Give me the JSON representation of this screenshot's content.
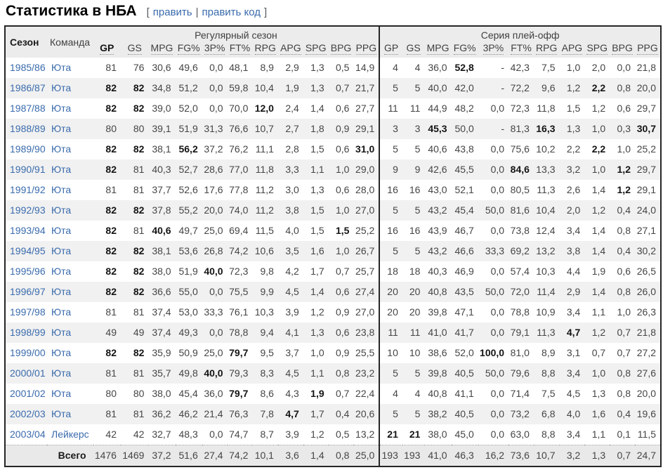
{
  "page": {
    "title": "Статистика в НБА",
    "edit": {
      "open_bracket": "[",
      "edit_label": "править",
      "divider": "|",
      "edit_code_label": "править код",
      "close_bracket": "]"
    }
  },
  "colors": {
    "link": "#3a6bac",
    "header_bg": "#ececec",
    "stripe_bg": "#f1f1f1",
    "total_bg": "#e9e9e9",
    "border": "#262626"
  },
  "table": {
    "season_header": "Сезон",
    "team_header": "Команда",
    "groups": [
      {
        "label": "Регулярный сезон"
      },
      {
        "label": "Серия плей-офф"
      }
    ],
    "reg_stat_headers": [
      "*GP",
      "GS",
      "MPG",
      "FG%",
      "3P%",
      "FT%",
      "RPG",
      "APG",
      "SPG",
      "BPG",
      "PPG"
    ],
    "po_stat_headers": [
      "GP",
      "GS",
      "MPG",
      "FG%",
      "3P%",
      "FT%",
      "RPG",
      "APG",
      "SPG",
      "BPG",
      "PPG"
    ],
    "rows": [
      {
        "season": "1985/86",
        "team": "Юта",
        "reg": [
          "81",
          "76",
          "30,6",
          "49,6",
          "0,0",
          "48,1",
          "8,9",
          "2,9",
          "1,3",
          "0,5",
          "14,9"
        ],
        "po": [
          "4",
          "4",
          "36,0",
          "*52,8",
          "-",
          "42,3",
          "7,5",
          "1,0",
          "2,0",
          "0,0",
          "21,8"
        ]
      },
      {
        "season": "1986/87",
        "team": "Юта",
        "reg": [
          "*82",
          "*82",
          "34,8",
          "51,2",
          "0,0",
          "59,8",
          "10,4",
          "1,9",
          "1,3",
          "0,7",
          "21,7"
        ],
        "po": [
          "5",
          "5",
          "40,0",
          "42,0",
          "-",
          "72,2",
          "9,6",
          "1,2",
          "*2,2",
          "0,8",
          "20,0"
        ]
      },
      {
        "season": "1987/88",
        "team": "Юта",
        "reg": [
          "*82",
          "*82",
          "39,0",
          "52,0",
          "0,0",
          "70,0",
          "*12,0",
          "2,4",
          "1,4",
          "0,6",
          "27,7"
        ],
        "po": [
          "11",
          "11",
          "44,9",
          "48,2",
          "0,0",
          "72,3",
          "11,8",
          "1,5",
          "1,2",
          "0,6",
          "29,7"
        ]
      },
      {
        "season": "1988/89",
        "team": "Юта",
        "reg": [
          "80",
          "80",
          "39,1",
          "51,9",
          "31,3",
          "76,6",
          "10,7",
          "2,7",
          "1,8",
          "0,9",
          "29,1"
        ],
        "po": [
          "3",
          "3",
          "*45,3",
          "50,0",
          "-",
          "81,3",
          "*16,3",
          "1,3",
          "1,0",
          "0,3",
          "*30,7"
        ]
      },
      {
        "season": "1989/90",
        "team": "Юта",
        "reg": [
          "*82",
          "*82",
          "38,1",
          "*56,2",
          "37,2",
          "76,2",
          "11,1",
          "2,8",
          "1,5",
          "0,6",
          "*31,0"
        ],
        "po": [
          "5",
          "5",
          "40,6",
          "43,8",
          "0,0",
          "75,6",
          "10,2",
          "2,2",
          "*2,2",
          "1,0",
          "25,2"
        ]
      },
      {
        "season": "1990/91",
        "team": "Юта",
        "reg": [
          "*82",
          "81",
          "40,3",
          "52,7",
          "28,6",
          "77,0",
          "11,8",
          "3,3",
          "1,1",
          "1,0",
          "29,0"
        ],
        "po": [
          "9",
          "9",
          "42,6",
          "45,5",
          "0,0",
          "*84,6",
          "13,3",
          "3,2",
          "1,0",
          "*1,2",
          "29,7"
        ]
      },
      {
        "season": "1991/92",
        "team": "Юта",
        "reg": [
          "81",
          "81",
          "37,7",
          "52,6",
          "17,6",
          "77,8",
          "11,2",
          "3,0",
          "1,3",
          "0,6",
          "28,0"
        ],
        "po": [
          "16",
          "16",
          "43,0",
          "52,1",
          "0,0",
          "80,5",
          "11,3",
          "2,6",
          "1,4",
          "*1,2",
          "29,1"
        ]
      },
      {
        "season": "1992/93",
        "team": "Юта",
        "reg": [
          "*82",
          "*82",
          "37,8",
          "55,2",
          "20,0",
          "74,0",
          "11,2",
          "3,8",
          "1,5",
          "1,0",
          "27,0"
        ],
        "po": [
          "5",
          "5",
          "43,2",
          "45,4",
          "50,0",
          "81,6",
          "10,4",
          "2,0",
          "1,2",
          "0,4",
          "24,0"
        ]
      },
      {
        "season": "1993/94",
        "team": "Юта",
        "reg": [
          "*82",
          "81",
          "*40,6",
          "49,7",
          "25,0",
          "69,4",
          "11,5",
          "4,0",
          "1,5",
          "*1,5",
          "25,2"
        ],
        "po": [
          "16",
          "16",
          "43,9",
          "46,7",
          "0,0",
          "73,8",
          "12,4",
          "3,4",
          "1,4",
          "0,8",
          "27,1"
        ]
      },
      {
        "season": "1994/95",
        "team": "Юта",
        "reg": [
          "*82",
          "*82",
          "38,1",
          "53,6",
          "26,8",
          "74,2",
          "10,6",
          "3,5",
          "1,6",
          "1,0",
          "26,7"
        ],
        "po": [
          "5",
          "5",
          "43,2",
          "46,6",
          "33,3",
          "69,2",
          "13,2",
          "3,8",
          "1,4",
          "0,4",
          "30,2"
        ]
      },
      {
        "season": "1995/96",
        "team": "Юта",
        "reg": [
          "*82",
          "*82",
          "38,0",
          "51,9",
          "*40,0",
          "72,3",
          "9,8",
          "4,2",
          "1,7",
          "0,7",
          "25,7"
        ],
        "po": [
          "18",
          "18",
          "40,3",
          "46,9",
          "0,0",
          "57,4",
          "10,3",
          "4,4",
          "1,9",
          "0,6",
          "26,5"
        ]
      },
      {
        "season": "1996/97",
        "team": "Юта",
        "reg": [
          "*82",
          "*82",
          "36,6",
          "55,0",
          "0,0",
          "75,5",
          "9,9",
          "4,5",
          "1,4",
          "0,6",
          "27,4"
        ],
        "po": [
          "20",
          "20",
          "40,8",
          "43,5",
          "50,0",
          "72,0",
          "11,4",
          "2,9",
          "1,4",
          "0,8",
          "26,0"
        ]
      },
      {
        "season": "1997/98",
        "team": "Юта",
        "reg": [
          "81",
          "81",
          "37,4",
          "53,0",
          "33,3",
          "76,1",
          "10,3",
          "3,9",
          "1,2",
          "0,9",
          "27,0"
        ],
        "po": [
          "20",
          "20",
          "39,8",
          "47,1",
          "0,0",
          "78,8",
          "10,9",
          "3,4",
          "1,1",
          "1,0",
          "26,3"
        ]
      },
      {
        "season": "1998/99",
        "team": "Юта",
        "reg": [
          "49",
          "49",
          "37,4",
          "49,3",
          "0,0",
          "78,8",
          "9,4",
          "4,1",
          "1,3",
          "0,6",
          "23,8"
        ],
        "po": [
          "11",
          "11",
          "41,0",
          "41,7",
          "0,0",
          "79,1",
          "11,3",
          "*4,7",
          "1,2",
          "0,7",
          "21,8"
        ]
      },
      {
        "season": "1999/00",
        "team": "Юта",
        "reg": [
          "*82",
          "*82",
          "35,9",
          "50,9",
          "25,0",
          "*79,7",
          "9,5",
          "3,7",
          "1,0",
          "0,9",
          "25,5"
        ],
        "po": [
          "10",
          "10",
          "38,6",
          "52,0",
          "*100,0",
          "81,0",
          "8,9",
          "3,1",
          "0,7",
          "0,7",
          "27,2"
        ]
      },
      {
        "season": "2000/01",
        "team": "Юта",
        "reg": [
          "81",
          "81",
          "35,7",
          "49,8",
          "*40,0",
          "79,3",
          "8,3",
          "4,5",
          "1,1",
          "0,8",
          "23,2"
        ],
        "po": [
          "5",
          "5",
          "39,8",
          "40,5",
          "50,0",
          "79,6",
          "8,8",
          "3,4",
          "1,0",
          "0,8",
          "27,6"
        ]
      },
      {
        "season": "2001/02",
        "team": "Юта",
        "reg": [
          "80",
          "80",
          "38,0",
          "45,4",
          "36,0",
          "*79,7",
          "8,6",
          "4,3",
          "*1,9",
          "0,7",
          "22,4"
        ],
        "po": [
          "4",
          "4",
          "40,8",
          "41,1",
          "0,0",
          "71,4",
          "7,5",
          "4,5",
          "1,3",
          "0,8",
          "20,0"
        ]
      },
      {
        "season": "2002/03",
        "team": "Юта",
        "reg": [
          "81",
          "81",
          "36,2",
          "46,2",
          "21,4",
          "76,3",
          "7,8",
          "*4,7",
          "1,7",
          "0,4",
          "20,6"
        ],
        "po": [
          "5",
          "5",
          "38,2",
          "40,5",
          "0,0",
          "73,2",
          "6,8",
          "4,0",
          "1,6",
          "0,4",
          "19,6"
        ]
      },
      {
        "season": "2003/04",
        "team": "Лейкерс",
        "reg": [
          "42",
          "42",
          "32,7",
          "48,3",
          "0,0",
          "74,7",
          "8,7",
          "3,9",
          "1,2",
          "0,5",
          "13,2"
        ],
        "po": [
          "*21",
          "*21",
          "38,0",
          "45,0",
          "0,0",
          "63,0",
          "8,8",
          "3,4",
          "1,1",
          "0,1",
          "11,5"
        ]
      }
    ],
    "total": {
      "label": "Всего",
      "reg": [
        "1476",
        "1469",
        "37,2",
        "51,6",
        "27,4",
        "74,2",
        "10,1",
        "3,6",
        "1,4",
        "0,8",
        "25,0"
      ],
      "po": [
        "193",
        "193",
        "41,0",
        "46,3",
        "16,2",
        "73,6",
        "10,7",
        "3,2",
        "1,3",
        "0,7",
        "24,7"
      ]
    }
  }
}
